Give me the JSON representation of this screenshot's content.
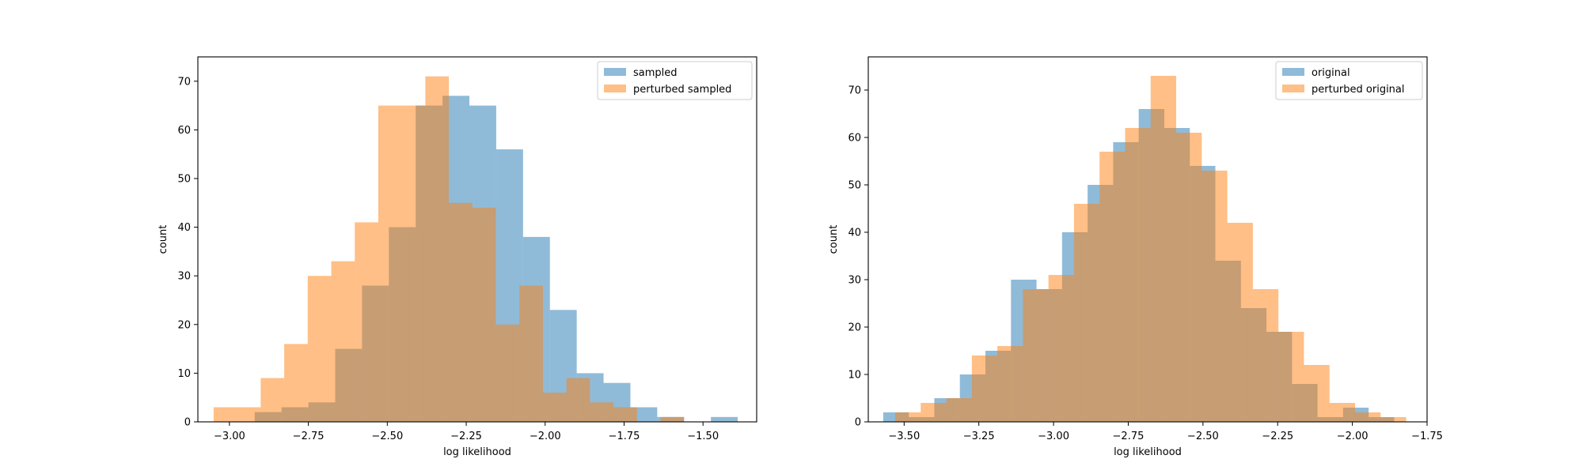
{
  "colors": {
    "series1": "#1f77b4",
    "series2": "#ff7f0e",
    "axis": "#000000"
  },
  "chart_data": [
    {
      "type": "bar",
      "title": "",
      "xlabel": "log likelihood",
      "ylabel": "count",
      "xlim": [
        -3.1,
        -1.33
      ],
      "ylim": [
        0,
        75
      ],
      "xticks": [
        -3.0,
        -2.75,
        -2.5,
        -2.25,
        -2.0,
        -1.75,
        -1.5
      ],
      "xtick_labels": [
        "−3.00",
        "−2.75",
        "−2.50",
        "−2.25",
        "−2.00",
        "−1.75",
        "−1.50"
      ],
      "yticks": [
        0,
        10,
        20,
        30,
        40,
        50,
        60,
        70
      ],
      "ytick_labels": [
        "0",
        "10",
        "20",
        "30",
        "40",
        "50",
        "60",
        "70"
      ],
      "legend_position": "top-right",
      "series": [
        {
          "name": "sampled",
          "bin_edges": [
            -2.92,
            -2.835,
            -2.75,
            -2.665,
            -2.58,
            -2.495,
            -2.41,
            -2.325,
            -2.24,
            -2.155,
            -2.07,
            -1.985,
            -1.9,
            -1.815,
            -1.73,
            -1.645,
            -1.56,
            -1.475,
            -1.39
          ],
          "counts": [
            2,
            3,
            4,
            15,
            28,
            40,
            65,
            67,
            65,
            56,
            38,
            23,
            10,
            8,
            3,
            1,
            0,
            1
          ]
        },
        {
          "name": "perturbed sampled",
          "bin_edges": [
            -3.05,
            -2.9755,
            -2.901,
            -2.8265,
            -2.752,
            -2.6775,
            -2.603,
            -2.5285,
            -2.454,
            -2.3795,
            -2.305,
            -2.2305,
            -2.156,
            -2.0815,
            -2.007,
            -1.9325,
            -1.858,
            -1.7835,
            -1.709,
            -1.6345,
            -1.56
          ],
          "counts": [
            3,
            3,
            9,
            16,
            30,
            33,
            41,
            65,
            65,
            71,
            45,
            44,
            20,
            28,
            6,
            9,
            4,
            3,
            0,
            1
          ]
        }
      ]
    },
    {
      "type": "bar",
      "title": "",
      "xlabel": "log likelihood",
      "ylabel": "count",
      "xlim": [
        -3.62,
        -1.75
      ],
      "ylim": [
        0,
        77
      ],
      "xticks": [
        -3.5,
        -3.25,
        -3.0,
        -2.75,
        -2.5,
        -2.25,
        -2.0,
        -1.75
      ],
      "xtick_labels": [
        "−3.50",
        "−3.25",
        "−3.00",
        "−2.75",
        "−2.50",
        "−2.25",
        "−2.00",
        "−1.75"
      ],
      "yticks": [
        0,
        10,
        20,
        30,
        40,
        50,
        60,
        70
      ],
      "ytick_labels": [
        "0",
        "10",
        "20",
        "30",
        "40",
        "50",
        "60",
        "70"
      ],
      "legend_position": "top-right",
      "series": [
        {
          "name": "original",
          "bin_edges": [
            -3.57,
            -3.4845,
            -3.399,
            -3.3135,
            -3.228,
            -3.1425,
            -3.057,
            -2.9715,
            -2.886,
            -2.8005,
            -2.715,
            -2.6295,
            -2.544,
            -2.4585,
            -2.373,
            -2.2875,
            -2.202,
            -2.1165,
            -2.031,
            -1.9455,
            -1.86
          ],
          "counts": [
            2,
            1,
            5,
            10,
            15,
            30,
            28,
            40,
            50,
            59,
            66,
            62,
            54,
            34,
            24,
            19,
            8,
            1,
            3,
            1
          ]
        },
        {
          "name": "perturbed original",
          "bin_edges": [
            -3.53,
            -3.4445,
            -3.359,
            -3.2735,
            -3.188,
            -3.1025,
            -3.017,
            -2.9315,
            -2.846,
            -2.7605,
            -2.675,
            -2.5895,
            -2.504,
            -2.4185,
            -2.333,
            -2.2475,
            -2.162,
            -2.0765,
            -1.991,
            -1.9055,
            -1.82
          ],
          "counts": [
            2,
            4,
            5,
            14,
            16,
            28,
            31,
            46,
            57,
            62,
            73,
            61,
            53,
            42,
            28,
            19,
            12,
            4,
            2,
            1
          ]
        }
      ]
    }
  ]
}
